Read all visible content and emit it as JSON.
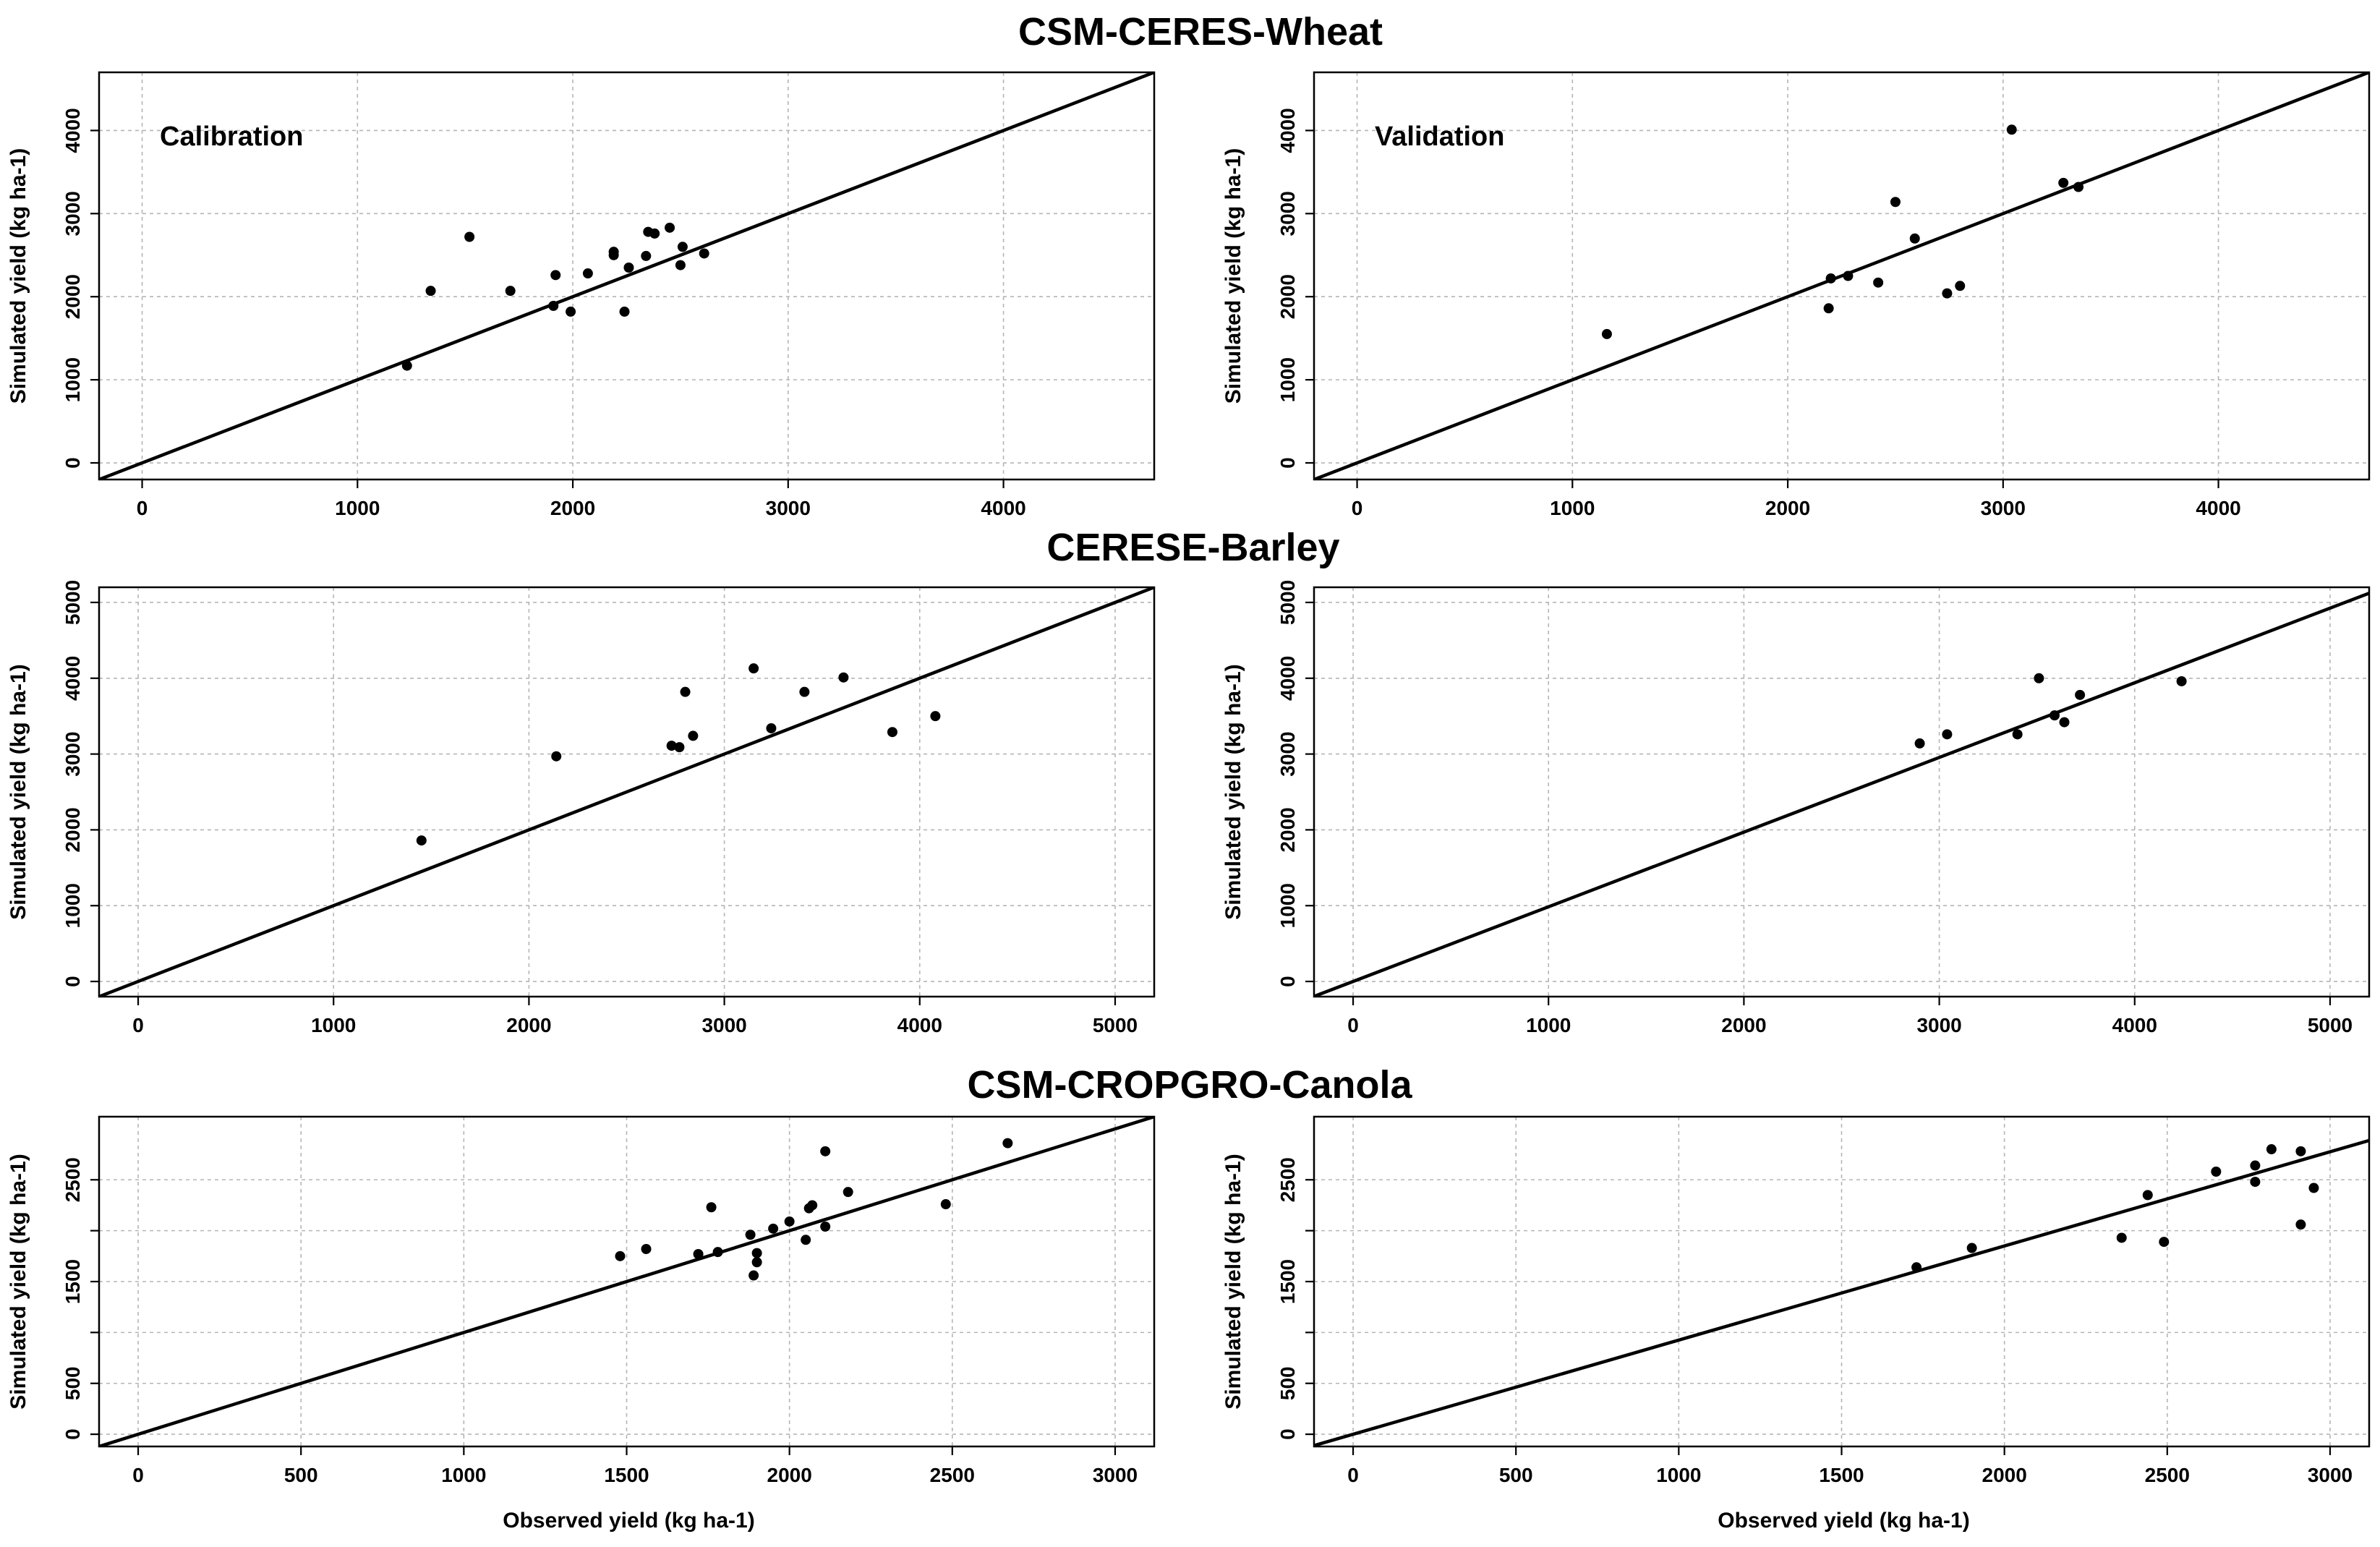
{
  "chart_data": [
    {
      "type": "scatter",
      "group_title": "CSM-CERES-Wheat",
      "annotation": "Calibration",
      "xlabel": "",
      "ylabel": "Simulated yield (kg ha-1)",
      "xlim": [
        -200,
        4700
      ],
      "ylim": [
        -200,
        4700
      ],
      "xticks": [
        0,
        1000,
        2000,
        3000,
        4000
      ],
      "yticks": [
        0,
        1000,
        2000,
        3000,
        4000
      ],
      "grid": true,
      "line": "1:1",
      "x": [
        1230,
        1340,
        1520,
        1710,
        1910,
        1920,
        1990,
        2070,
        2190,
        2190,
        2240,
        2260,
        2340,
        2350,
        2380,
        2450,
        2500,
        2510,
        2610
      ],
      "y": [
        1170,
        2070,
        2720,
        2070,
        1890,
        2260,
        1820,
        2280,
        2500,
        2540,
        1820,
        2350,
        2490,
        2780,
        2760,
        2830,
        2380,
        2600,
        2520
      ]
    },
    {
      "type": "scatter",
      "group_title": "",
      "annotation": "Validation",
      "xlabel": "",
      "ylabel": "Simulated yield (kg ha-1)",
      "xlim": [
        -200,
        4700
      ],
      "ylim": [
        -200,
        4700
      ],
      "xticks": [
        0,
        1000,
        2000,
        3000,
        4000
      ],
      "yticks": [
        0,
        1000,
        2000,
        3000,
        4000
      ],
      "grid": true,
      "line": "1:1",
      "x": [
        1160,
        2190,
        2200,
        2280,
        2420,
        2500,
        2590,
        2740,
        2800,
        3040,
        3280,
        3350
      ],
      "y": [
        1550,
        1860,
        2220,
        2250,
        2170,
        3140,
        2700,
        2040,
        2130,
        4010,
        3370,
        3320
      ]
    },
    {
      "type": "scatter",
      "group_title": "CERESE-Barley",
      "annotation": "",
      "xlabel": "",
      "ylabel": "Simulated yield (kg ha-1)",
      "xlim": [
        -200,
        5200
      ],
      "ylim": [
        -200,
        5200
      ],
      "xticks": [
        0,
        1000,
        2000,
        3000,
        4000,
        5000
      ],
      "yticks": [
        0,
        1000,
        2000,
        3000,
        4000,
        5000
      ],
      "grid": true,
      "line": "1:1",
      "x": [
        1450,
        2140,
        2730,
        2770,
        2800,
        2840,
        3150,
        3240,
        3410,
        3610,
        3860,
        4080
      ],
      "y": [
        1860,
        2970,
        3110,
        3090,
        3820,
        3240,
        4130,
        3340,
        3820,
        4010,
        3290,
        3500
      ]
    },
    {
      "type": "scatter",
      "group_title": "",
      "annotation": "",
      "xlabel": "",
      "ylabel": "Simulated yield (kg ha-1)",
      "xlim": [
        -200,
        5200
      ],
      "ylim": [
        -200,
        5200
      ],
      "xticks": [
        0,
        1000,
        2000,
        3000,
        4000,
        5000
      ],
      "yticks": [
        0,
        1000,
        2000,
        3000,
        4000,
        5000
      ],
      "grid": true,
      "line": "1:1",
      "x": [
        2900,
        3040,
        3400,
        3510,
        3590,
        3640,
        3720,
        4240
      ],
      "y": [
        3140,
        3260,
        3260,
        4000,
        3510,
        3420,
        3780,
        3960
      ],
      "slope": 0.985
    },
    {
      "type": "scatter",
      "group_title": "CSM-CROPGRO-Canola",
      "annotation": "",
      "xlabel": "Observed yield (kg ha-1)",
      "ylabel": "Simulated yield (kg ha-1)",
      "xlim": [
        -120,
        3120
      ],
      "ylim": [
        -120,
        3120
      ],
      "xticks": [
        0,
        500,
        1000,
        1500,
        2000,
        2500,
        3000
      ],
      "yticks": [
        0,
        500,
        1500,
        2500
      ],
      "grid": true,
      "line": "1:1",
      "x": [
        1480,
        1560,
        1720,
        1760,
        1780,
        1880,
        1890,
        1900,
        1900,
        1950,
        2000,
        2050,
        2060,
        2070,
        2110,
        2110,
        2180,
        2480,
        2670
      ],
      "y": [
        1750,
        1820,
        1770,
        2230,
        1790,
        1960,
        1560,
        1780,
        1690,
        2020,
        2090,
        1910,
        2220,
        2250,
        2780,
        2040,
        2380,
        2260,
        2860
      ]
    },
    {
      "type": "scatter",
      "group_title": "",
      "annotation": "",
      "xlabel": "Observed yield (kg ha-1)",
      "ylabel": "Simulated yield (kg ha-1)",
      "xlim": [
        -120,
        3120
      ],
      "ylim": [
        -120,
        3120
      ],
      "xticks": [
        0,
        500,
        1000,
        1500,
        2000,
        2500,
        3000
      ],
      "yticks": [
        0,
        500,
        1500,
        2500
      ],
      "grid": true,
      "line": "1:1",
      "x": [
        1730,
        1900,
        2360,
        2440,
        2490,
        2650,
        2770,
        2770,
        2820,
        2910,
        2910,
        2950
      ],
      "y": [
        1640,
        1830,
        1930,
        2350,
        1890,
        2580,
        2480,
        2640,
        2800,
        2780,
        2060,
        2420
      ],
      "slope": 0.925
    }
  ]
}
